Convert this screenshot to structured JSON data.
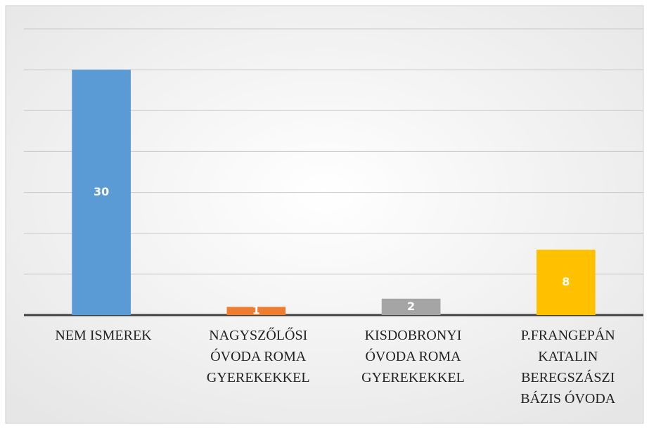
{
  "chart_data": {
    "type": "bar",
    "categories": [
      "NEM ISMEREK",
      "NAGYSZŐLŐSI\nÓVODA ROMA\nGYEREKEKKEL",
      "KISDOBRONYI\nÓVODA ROMA\nGYEREKEKKEL",
      "P.FRANGEPÁN\nKATALIN\nBEREGSZÁSZI\nBÁZIS ÓVODA"
    ],
    "values": [
      30,
      1,
      2,
      8
    ],
    "colors": [
      "#5b9bd5",
      "#ed7d31",
      "#a5a5a5",
      "#ffc000"
    ],
    "ylim": [
      0,
      35
    ],
    "yticks": [
      0,
      5,
      10,
      15,
      20,
      25,
      30,
      35
    ],
    "grid": true
  }
}
